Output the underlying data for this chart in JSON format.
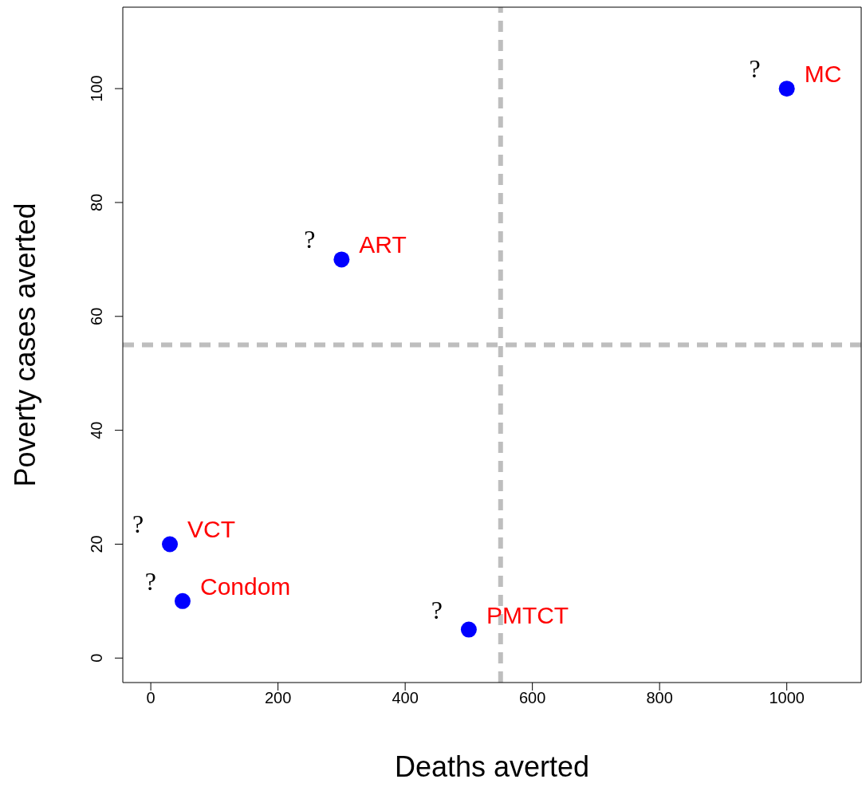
{
  "chart_data": {
    "type": "scatter",
    "xlabel": "Deaths averted",
    "ylabel": "Poverty cases averted",
    "xlim": [
      -44,
      1117
    ],
    "ylim": [
      -4.3,
      114.3
    ],
    "xticks": [
      0,
      200,
      400,
      600,
      800,
      1000
    ],
    "yticks": [
      0,
      20,
      40,
      60,
      80,
      100
    ],
    "marker": "circle",
    "series": [
      {
        "name": "VCT",
        "color": "#0000ff",
        "x": [
          30
        ],
        "values": [
          20
        ]
      },
      {
        "name": "Condom",
        "color": "#0000ff",
        "x": [
          50
        ],
        "values": [
          10
        ]
      },
      {
        "name": "ART",
        "color": "#0000ff",
        "x": [
          300
        ],
        "values": [
          70
        ]
      },
      {
        "name": "PMTCT",
        "color": "#0000ff",
        "x": [
          500
        ],
        "values": [
          5
        ]
      },
      {
        "name": "MC",
        "color": "#0000ff",
        "x": [
          1000
        ],
        "values": [
          100
        ]
      }
    ],
    "ref_lines": [
      {
        "axis": "x",
        "value": 550,
        "color": "#bebebe",
        "line_style": "dashed"
      },
      {
        "axis": "y",
        "value": 55,
        "color": "#bebebe",
        "line_style": "dashed"
      }
    ],
    "annotations": [
      "?",
      "?",
      "?",
      "?",
      "?"
    ]
  }
}
